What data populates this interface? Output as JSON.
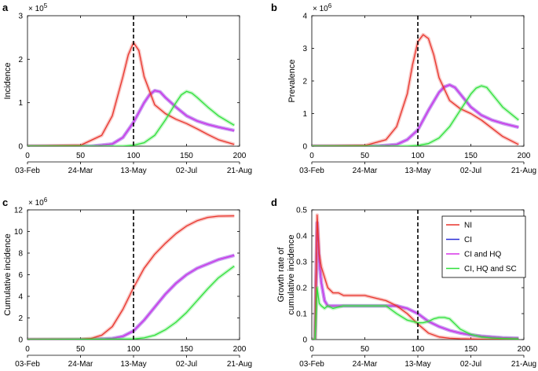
{
  "colors": {
    "NI": "#e8342b",
    "CI": "#2b2fd6",
    "CI and HQ": "#d733e8",
    "CI, HQ and SC": "#2fe03a",
    "vline": "#000000"
  },
  "chart_data": [
    {
      "panel": "a",
      "type": "line",
      "xlabel": "",
      "ylabel": "Incidence",
      "exponent_label": "× 10",
      "exponent": "5",
      "xlim": [
        0,
        200
      ],
      "ylim": [
        0,
        3
      ],
      "yticks": [
        "0",
        "1",
        "2",
        "3"
      ],
      "xticks": [
        "0",
        "50",
        "100",
        "150",
        "200"
      ],
      "date_ticks": [
        "03-Feb",
        "24-Mar",
        "13-May",
        "02-Jul",
        "21-Aug"
      ],
      "vline": 100,
      "series": [
        {
          "name": "NI",
          "x": [
            0,
            50,
            70,
            80,
            90,
            95,
            100,
            105,
            110,
            120,
            130,
            140,
            150,
            160,
            170,
            180,
            195
          ],
          "y": [
            0,
            0.02,
            0.25,
            0.7,
            1.6,
            2.1,
            2.38,
            2.2,
            1.6,
            0.95,
            0.75,
            0.62,
            0.52,
            0.4,
            0.27,
            0.15,
            0.04
          ]
        },
        {
          "name": "CI",
          "x": [
            0,
            60,
            80,
            90,
            100,
            110,
            115,
            120,
            125,
            130,
            140,
            150,
            160,
            170,
            180,
            195
          ],
          "y": [
            0,
            0,
            0.05,
            0.2,
            0.55,
            1.0,
            1.18,
            1.28,
            1.25,
            1.12,
            0.9,
            0.7,
            0.58,
            0.5,
            0.44,
            0.36
          ]
        },
        {
          "name": "CI and HQ",
          "x": [
            0,
            60,
            80,
            90,
            100,
            110,
            115,
            120,
            125,
            130,
            140,
            150,
            160,
            170,
            180,
            195
          ],
          "y": [
            0,
            0,
            0.05,
            0.2,
            0.55,
            1.0,
            1.18,
            1.28,
            1.25,
            1.12,
            0.9,
            0.7,
            0.58,
            0.5,
            0.44,
            0.36
          ]
        },
        {
          "name": "CI, HQ and SC",
          "x": [
            0,
            90,
            100,
            110,
            120,
            130,
            140,
            145,
            150,
            155,
            160,
            170,
            180,
            195
          ],
          "y": [
            0,
            0,
            0.02,
            0.08,
            0.25,
            0.6,
            1.0,
            1.18,
            1.26,
            1.22,
            1.12,
            0.9,
            0.7,
            0.48
          ]
        }
      ]
    },
    {
      "panel": "b",
      "type": "line",
      "xlabel": "",
      "ylabel": "Prevalence",
      "exponent_label": "× 10",
      "exponent": "6",
      "xlim": [
        0,
        200
      ],
      "ylim": [
        0,
        4
      ],
      "yticks": [
        "0",
        "1",
        "2",
        "3",
        "4"
      ],
      "xticks": [
        "0",
        "50",
        "100",
        "150",
        "200"
      ],
      "date_ticks": [
        "03-Feb",
        "24-Mar",
        "13-May",
        "02-Jul",
        "21-Aug"
      ],
      "vline": 100,
      "series": [
        {
          "name": "NI",
          "x": [
            0,
            50,
            70,
            80,
            90,
            95,
            100,
            105,
            110,
            115,
            120,
            130,
            140,
            150,
            160,
            170,
            180,
            195
          ],
          "y": [
            0,
            0.02,
            0.2,
            0.6,
            1.6,
            2.5,
            3.2,
            3.42,
            3.3,
            2.8,
            2.1,
            1.4,
            1.15,
            1.0,
            0.8,
            0.55,
            0.3,
            0.05
          ]
        },
        {
          "name": "CI",
          "x": [
            0,
            60,
            80,
            90,
            100,
            110,
            120,
            125,
            130,
            135,
            140,
            150,
            160,
            170,
            180,
            195
          ],
          "y": [
            0,
            0,
            0.05,
            0.2,
            0.5,
            1.1,
            1.65,
            1.82,
            1.88,
            1.8,
            1.6,
            1.2,
            0.95,
            0.8,
            0.7,
            0.58
          ]
        },
        {
          "name": "CI and HQ",
          "x": [
            0,
            60,
            80,
            90,
            100,
            110,
            120,
            125,
            130,
            135,
            140,
            150,
            160,
            170,
            180,
            195
          ],
          "y": [
            0,
            0,
            0.05,
            0.2,
            0.5,
            1.1,
            1.65,
            1.82,
            1.88,
            1.8,
            1.6,
            1.2,
            0.95,
            0.8,
            0.7,
            0.58
          ]
        },
        {
          "name": "CI, HQ and SC",
          "x": [
            0,
            90,
            100,
            110,
            120,
            130,
            140,
            150,
            155,
            160,
            165,
            170,
            180,
            195
          ],
          "y": [
            0,
            0,
            0.02,
            0.08,
            0.25,
            0.6,
            1.1,
            1.6,
            1.78,
            1.85,
            1.8,
            1.6,
            1.2,
            0.8
          ]
        }
      ]
    },
    {
      "panel": "c",
      "type": "line",
      "xlabel": "",
      "ylabel": "Cumulative incidence",
      "exponent_label": "× 10",
      "exponent": "6",
      "xlim": [
        0,
        200
      ],
      "ylim": [
        0,
        12
      ],
      "yticks": [
        "0",
        "2",
        "4",
        "6",
        "8",
        "10",
        "12"
      ],
      "xticks": [
        "0",
        "50",
        "100",
        "150",
        "200"
      ],
      "date_ticks": [
        "03-Feb",
        "24-Mar",
        "13-May",
        "02-Jul",
        "21-Aug"
      ],
      "vline": 100,
      "series": [
        {
          "name": "NI",
          "x": [
            0,
            50,
            60,
            70,
            80,
            90,
            100,
            110,
            120,
            130,
            140,
            150,
            160,
            170,
            180,
            195
          ],
          "y": [
            0,
            0.02,
            0.1,
            0.4,
            1.2,
            2.8,
            4.8,
            6.6,
            7.9,
            8.9,
            9.8,
            10.5,
            11.0,
            11.3,
            11.42,
            11.45
          ]
        },
        {
          "name": "CI",
          "x": [
            0,
            60,
            80,
            90,
            100,
            110,
            120,
            130,
            140,
            150,
            160,
            170,
            180,
            195
          ],
          "y": [
            0,
            0,
            0.1,
            0.3,
            0.8,
            1.8,
            3.0,
            4.2,
            5.2,
            6.0,
            6.6,
            7.0,
            7.4,
            7.8
          ]
        },
        {
          "name": "CI and HQ",
          "x": [
            0,
            60,
            80,
            90,
            100,
            110,
            120,
            130,
            140,
            150,
            160,
            170,
            180,
            195
          ],
          "y": [
            0,
            0,
            0.1,
            0.3,
            0.8,
            1.8,
            3.0,
            4.2,
            5.2,
            6.0,
            6.6,
            7.0,
            7.4,
            7.8
          ]
        },
        {
          "name": "CI, HQ and SC",
          "x": [
            0,
            100,
            110,
            120,
            130,
            140,
            150,
            160,
            170,
            180,
            195
          ],
          "y": [
            0,
            0.05,
            0.15,
            0.4,
            0.9,
            1.6,
            2.5,
            3.6,
            4.7,
            5.7,
            6.8
          ]
        }
      ]
    },
    {
      "panel": "d",
      "type": "line",
      "xlabel": "",
      "ylabel": "Growth rate of cumulative incidence",
      "ylabel_lines": [
        "Growth rate of",
        "cumulative incidence"
      ],
      "xlim": [
        0,
        200
      ],
      "ylim": [
        0,
        0.5
      ],
      "yticks": [
        "0",
        "0.1",
        "0.2",
        "0.3",
        "0.4",
        "0.5"
      ],
      "xticks": [
        "0",
        "50",
        "100",
        "150",
        "200"
      ],
      "date_ticks": [
        "03-Feb",
        "24-Mar",
        "13-May",
        "02-Jul",
        "21-Aug"
      ],
      "vline": 100,
      "legend": {
        "position": "top-right",
        "entries": [
          "NI",
          "CI",
          "CI and HQ",
          "CI, HQ and SC"
        ]
      },
      "series": [
        {
          "name": "NI",
          "x": [
            0,
            3,
            5,
            7,
            9,
            12,
            15,
            20,
            25,
            30,
            40,
            50,
            60,
            70,
            80,
            90,
            100,
            110,
            120,
            130,
            140,
            150,
            160,
            170,
            180,
            195
          ],
          "y": [
            0,
            0,
            0.48,
            0.33,
            0.28,
            0.24,
            0.2,
            0.18,
            0.18,
            0.17,
            0.17,
            0.17,
            0.16,
            0.15,
            0.13,
            0.1,
            0.06,
            0.025,
            0.01,
            0.005,
            0.003,
            0.002,
            0.001,
            0.001,
            0.001,
            0.001
          ]
        },
        {
          "name": "CI",
          "x": [
            0,
            3,
            5,
            7,
            9,
            12,
            15,
            20,
            30,
            40,
            50,
            60,
            70,
            80,
            90,
            100,
            110,
            120,
            130,
            140,
            150,
            160,
            170,
            180,
            195
          ],
          "y": [
            0,
            0,
            0.45,
            0.3,
            0.22,
            0.15,
            0.13,
            0.13,
            0.13,
            0.13,
            0.13,
            0.13,
            0.13,
            0.13,
            0.12,
            0.1,
            0.07,
            0.05,
            0.035,
            0.025,
            0.018,
            0.013,
            0.01,
            0.007,
            0.005
          ]
        },
        {
          "name": "CI and HQ",
          "x": [
            0,
            3,
            5,
            7,
            9,
            12,
            15,
            20,
            30,
            40,
            50,
            60,
            70,
            80,
            90,
            100,
            110,
            120,
            130,
            140,
            150,
            160,
            170,
            180,
            195
          ],
          "y": [
            0,
            0,
            0.45,
            0.3,
            0.22,
            0.15,
            0.13,
            0.13,
            0.13,
            0.13,
            0.13,
            0.13,
            0.13,
            0.13,
            0.12,
            0.1,
            0.07,
            0.05,
            0.035,
            0.025,
            0.018,
            0.013,
            0.01,
            0.007,
            0.005
          ]
        },
        {
          "name": "CI, HQ and SC",
          "x": [
            0,
            3,
            5,
            7,
            9,
            12,
            15,
            20,
            30,
            40,
            50,
            60,
            70,
            80,
            90,
            100,
            105,
            110,
            115,
            120,
            125,
            130,
            135,
            140,
            150,
            160,
            170,
            180,
            195
          ],
          "y": [
            0,
            0,
            0.2,
            0.14,
            0.13,
            0.12,
            0.13,
            0.12,
            0.13,
            0.13,
            0.13,
            0.13,
            0.13,
            0.1,
            0.075,
            0.065,
            0.065,
            0.07,
            0.08,
            0.085,
            0.085,
            0.08,
            0.06,
            0.04,
            0.02,
            0.01,
            0.006,
            0.004,
            0.002
          ]
        }
      ]
    }
  ]
}
